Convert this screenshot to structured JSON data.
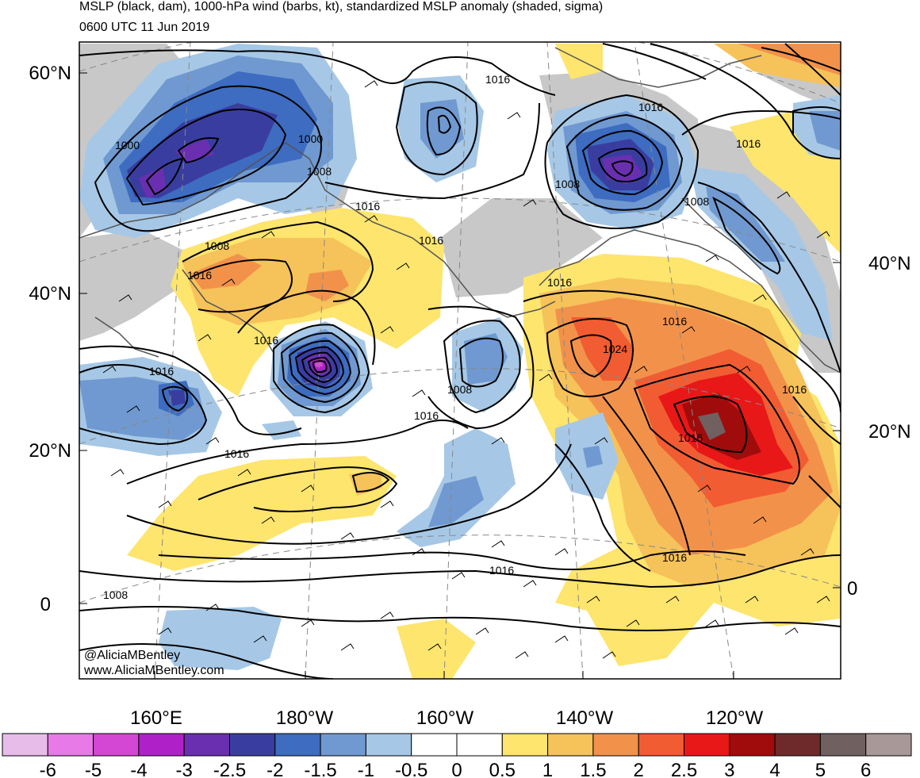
{
  "header": {
    "title": "MSLP (black, dam), 1000-hPa wind (barbs, kt), standardized MSLP anomaly (shaded, sigma)",
    "valid_time": "0600 UTC 11 Jun 2019"
  },
  "axes": {
    "left_lat_labels": [
      "60°N",
      "40°N",
      "20°N",
      "0"
    ],
    "right_lat_labels": [
      "40°N",
      "20°N",
      "0"
    ],
    "lon_labels": [
      "160°E",
      "180°W",
      "160°W",
      "140°W",
      "120°W"
    ]
  },
  "isobar_labels": [
    "1016",
    "1016",
    "1000",
    "1000",
    "1008",
    "1008",
    "1016",
    "1008",
    "1016",
    "1016",
    "1008",
    "1016",
    "1016",
    "1016",
    "1016",
    "1016",
    "1024",
    "1008",
    "1016",
    "1016",
    "1016",
    "1016",
    "1016",
    "1016",
    "1008"
  ],
  "colorbar": {
    "tick_labels": [
      "-6",
      "-5",
      "-4",
      "-3",
      "-2.5",
      "-2",
      "-1.5",
      "-1",
      "-0.5",
      "0",
      "0.5",
      "1",
      "1.5",
      "2",
      "2.5",
      "3",
      "4",
      "5",
      "6"
    ],
    "colors": [
      "#e8bce8",
      "#e87ae8",
      "#d446d4",
      "#b020c8",
      "#6a2fb0",
      "#3a3da0",
      "#3d6cc0",
      "#6f99d0",
      "#a6c8e6",
      "#ffffff",
      "#ffffff",
      "#fde56e",
      "#f6c25a",
      "#f2924a",
      "#f25c32",
      "#e81818",
      "#a00c0c",
      "#6e2a2a",
      "#706060",
      "#a89898"
    ]
  },
  "credits": [
    "@AliciaMBentley",
    "www.AliciaMBentley.com"
  ]
}
